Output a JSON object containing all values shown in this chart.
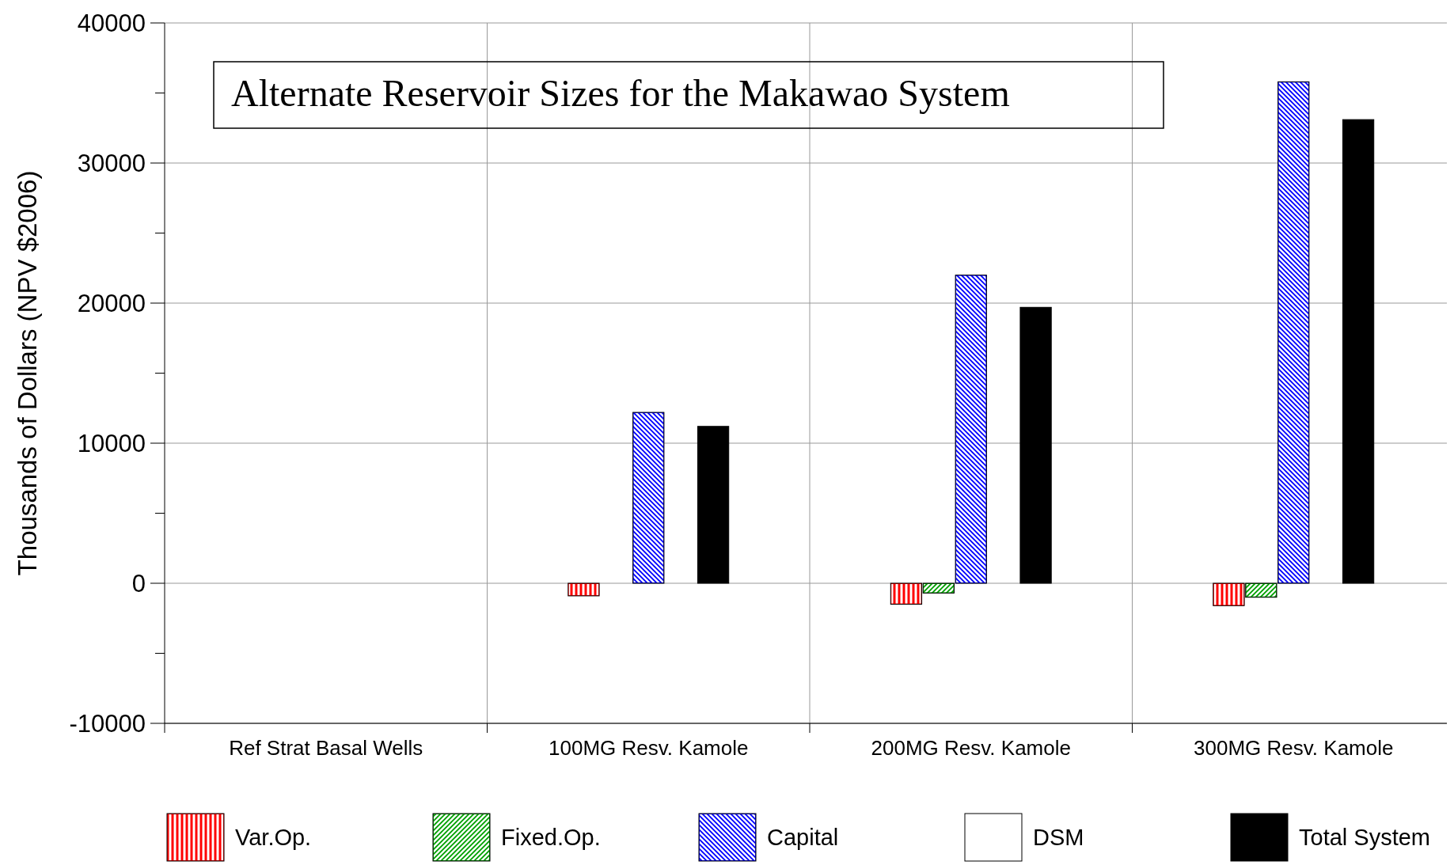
{
  "chart_data": {
    "type": "bar",
    "title": "Alternate Reservoir Sizes for the Makawao System",
    "ylabel": "Thousands of Dollars (NPV $2006)",
    "categories": [
      "Ref Strat Basal Wells",
      "100MG Resv. Kamole",
      "200MG Resv. Kamole",
      "300MG Resv. Kamole"
    ],
    "series": [
      {
        "name": "Var.Op.",
        "color": "#ff0000",
        "values": [
          0,
          -900,
          -1500,
          -1600
        ]
      },
      {
        "name": "Fixed.Op.",
        "color": "#00a000",
        "values": [
          0,
          0,
          -700,
          -1000
        ]
      },
      {
        "name": "Capital",
        "color": "#0000ff",
        "values": [
          0,
          12200,
          22000,
          35800
        ]
      },
      {
        "name": "DSM",
        "color": "#ffffff",
        "values": [
          0,
          0,
          0,
          0
        ]
      },
      {
        "name": "Total System",
        "color": "#000000",
        "values": [
          0,
          11200,
          19700,
          33100
        ]
      }
    ],
    "ylim": [
      -10000,
      40000
    ],
    "yticks": [
      -10000,
      {
        "value": -5000,
        "label": null
      },
      0,
      {
        "value": 5000,
        "label": null
      },
      10000,
      {
        "value": 15000,
        "label": null
      },
      20000,
      {
        "value": 25000,
        "label": null
      },
      30000,
      {
        "value": 35000,
        "label": null
      },
      40000
    ],
    "grid": true,
    "legend": "bottom"
  }
}
